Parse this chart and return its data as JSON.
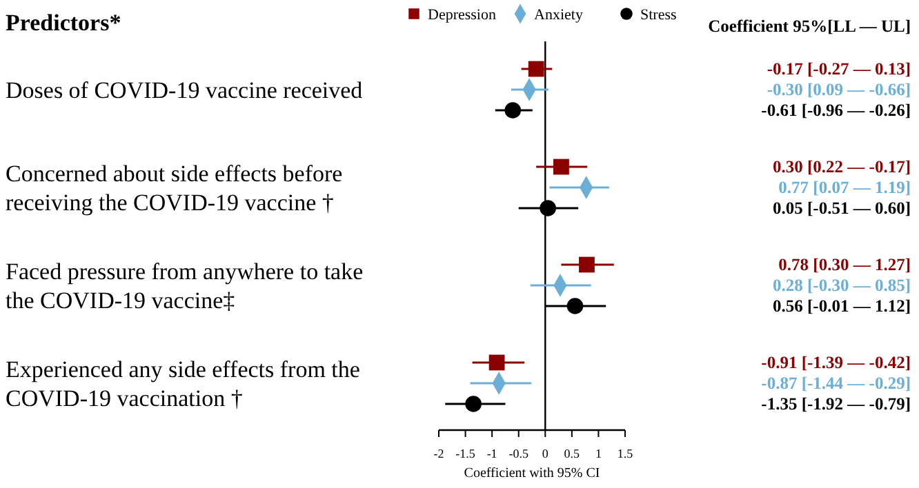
{
  "chart_data": [
    {
      "type": "scatter",
      "orientation": "horizontal",
      "ylabel": "Predictors*",
      "xlabel": "Coefficient with 95% CI",
      "categories": [
        "Doses of COVID-19 vaccine received",
        "Concerned about side effects before receiving the COVID-19 vaccine †",
        "Faced pressure from anywhere to take the COVID-19 vaccine‡",
        "Experienced any side effects from the COVID-19 vaccination †"
      ],
      "xlim": [
        -2,
        1.5
      ],
      "xticks": [
        -2,
        -1.5,
        -1,
        -0.5,
        0,
        0.5,
        1,
        1.5
      ],
      "ref_lines": [
        {
          "axis": "x",
          "value": 0,
          "color": "#000000"
        }
      ],
      "legend": "top",
      "series": [
        {
          "name": "Depression",
          "color": "#8b0000",
          "marker": "square",
          "values": [
            -0.17,
            0.3,
            0.78,
            -0.91
          ],
          "errors": [
            [
              -0.45,
              0.13
            ],
            [
              -0.17,
              0.79
            ],
            [
              0.3,
              1.29
            ],
            [
              -1.37,
              -0.39
            ]
          ]
        },
        {
          "name": "Anxiety",
          "color": "#6baed6",
          "marker": "diamond",
          "values": [
            -0.3,
            0.77,
            0.28,
            -0.87
          ],
          "errors": [
            [
              -0.64,
              0.06
            ],
            [
              0.08,
              1.2
            ],
            [
              -0.28,
              0.86
            ],
            [
              -1.41,
              -0.26
            ]
          ]
        },
        {
          "name": "Stress",
          "color": "#000000",
          "marker": "circle",
          "values": [
            -0.61,
            0.05,
            0.56,
            -1.35
          ],
          "errors": [
            [
              -0.94,
              -0.24
            ],
            [
              -0.5,
              0.62
            ],
            [
              0,
              1.14
            ],
            [
              -1.88,
              -0.75
            ]
          ]
        }
      ]
    },
    {
      "type": "other",
      "title": "Coefficient 95%[LL — UL]",
      "annotations": [
        "-0.17 [-0.27 — 0.13]",
        "-0.30 [0.09 — -0.66]",
        "-0.61 [-0.96 — -0.26]",
        "0.30 [0.22 — -0.17]",
        "0.77 [0.07 — 1.19]",
        "0.05 [-0.51 — 0.60]",
        "0.78 [0.30 — 1.27]",
        "0.28 [-0.30 — 0.85]",
        "0.56 [-0.01 — 1.12]",
        "-0.91 [-1.39 — -0.42]",
        "-0.87 [-1.44 — -0.29]",
        "-1.35 [-1.92 — -0.79]"
      ]
    }
  ]
}
